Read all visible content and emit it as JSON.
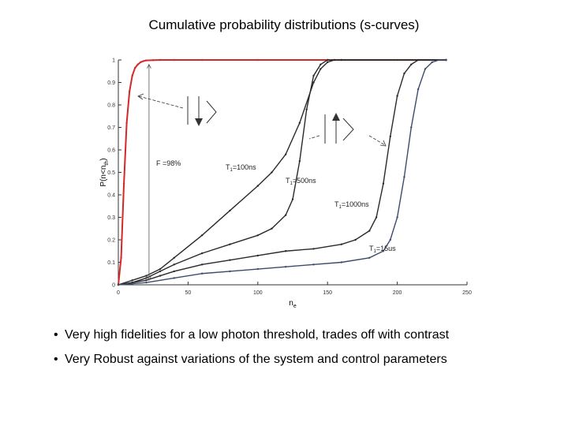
{
  "slide": {
    "title": "Cumulative probability distributions (s-curves)",
    "bullets": [
      "Very high fidelities for a low photon threshold, trades off with contrast",
      "Very Robust against variations of the system and control parameters"
    ]
  },
  "colors": {
    "red_series": "#d62728",
    "dark_series": "#2a2a2a",
    "blue_series": "#3d4a6b"
  },
  "chart_data": {
    "type": "line",
    "title": "",
    "xlabel": "n_e",
    "ylabel": "P(n<n_th)",
    "xlim": [
      0,
      250
    ],
    "ylim": [
      0,
      1
    ],
    "x_ticks": [
      0,
      50,
      100,
      150,
      200,
      250
    ],
    "y_ticks": [
      0,
      0.1,
      0.2,
      0.3,
      0.4,
      0.5,
      0.6,
      0.7,
      0.8,
      0.9,
      1
    ],
    "grid": false,
    "annotations": [
      {
        "text": "F =98%"
      },
      {
        "text": "T1=100ns"
      },
      {
        "text": "T1=500ns"
      },
      {
        "text": "T1=1000ns"
      },
      {
        "text": "T1=15us"
      }
    ],
    "series": [
      {
        "color": "#d62728",
        "x": [
          0,
          2,
          4,
          6,
          8,
          10,
          12,
          14,
          16,
          18,
          20,
          25,
          30,
          40,
          60,
          100,
          150,
          200,
          235
        ],
        "y": [
          0,
          0.12,
          0.45,
          0.72,
          0.86,
          0.93,
          0.965,
          0.98,
          0.99,
          0.995,
          0.998,
          0.999,
          1,
          1,
          1,
          1,
          1,
          1,
          1
        ]
      },
      {
        "color": "#2a2a2a",
        "x": [
          0,
          10,
          20,
          30,
          40,
          60,
          80,
          100,
          110,
          120,
          130,
          140,
          145,
          150,
          155,
          160,
          235
        ],
        "y": [
          0,
          0.02,
          0.04,
          0.07,
          0.12,
          0.22,
          0.33,
          0.44,
          0.5,
          0.58,
          0.72,
          0.9,
          0.96,
          0.99,
          1,
          1,
          1
        ]
      },
      {
        "color": "#2a2a2a",
        "x": [
          0,
          10,
          20,
          30,
          40,
          60,
          80,
          100,
          110,
          120,
          125,
          130,
          135,
          140,
          145,
          150,
          155,
          160,
          235
        ],
        "y": [
          0,
          0.01,
          0.03,
          0.06,
          0.09,
          0.14,
          0.18,
          0.22,
          0.25,
          0.31,
          0.38,
          0.55,
          0.78,
          0.93,
          0.98,
          1,
          1,
          1,
          1
        ]
      },
      {
        "color": "#2a2a2a",
        "x": [
          0,
          10,
          20,
          30,
          40,
          60,
          80,
          100,
          120,
          140,
          160,
          170,
          180,
          185,
          190,
          195,
          200,
          205,
          210,
          215,
          235
        ],
        "y": [
          0,
          0.01,
          0.02,
          0.04,
          0.06,
          0.09,
          0.11,
          0.13,
          0.15,
          0.16,
          0.18,
          0.2,
          0.24,
          0.3,
          0.45,
          0.66,
          0.84,
          0.94,
          0.98,
          1,
          1
        ]
      },
      {
        "color": "#3d4a6b",
        "x": [
          0,
          10,
          20,
          40,
          60,
          80,
          100,
          120,
          140,
          160,
          180,
          190,
          195,
          200,
          205,
          210,
          215,
          220,
          225,
          230,
          235
        ],
        "y": [
          0,
          0.005,
          0.01,
          0.03,
          0.05,
          0.06,
          0.07,
          0.08,
          0.09,
          0.1,
          0.12,
          0.15,
          0.2,
          0.3,
          0.48,
          0.7,
          0.87,
          0.96,
          0.99,
          1,
          1
        ]
      }
    ]
  }
}
